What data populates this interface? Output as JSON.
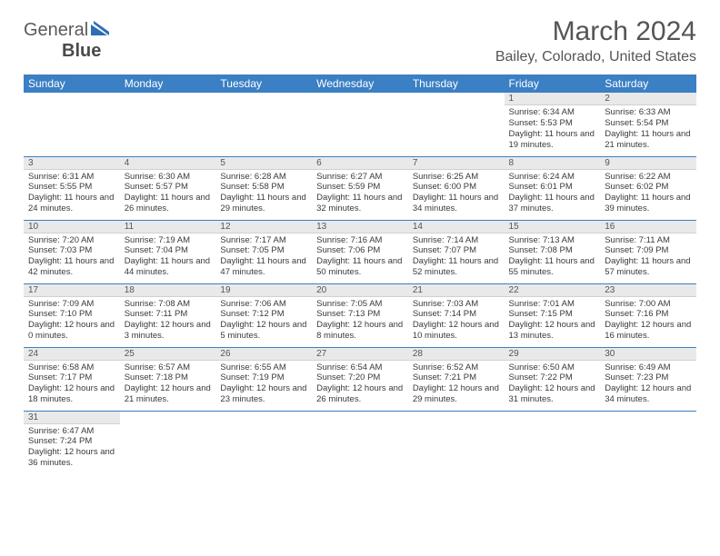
{
  "logo": {
    "text1": "General",
    "text2": "Blue"
  },
  "title": "March 2024",
  "location": "Bailey, Colorado, United States",
  "colors": {
    "header_bg": "#3b7fc4",
    "header_fg": "#ffffff",
    "daynum_bg": "#e9e9e9",
    "text": "#3a3a3a",
    "rule": "#3b7fc4"
  },
  "dayHeaders": [
    "Sunday",
    "Monday",
    "Tuesday",
    "Wednesday",
    "Thursday",
    "Friday",
    "Saturday"
  ],
  "weeks": [
    [
      null,
      null,
      null,
      null,
      null,
      {
        "n": "1",
        "sr": "6:34 AM",
        "ss": "5:53 PM",
        "dl": "11 hours and 19 minutes."
      },
      {
        "n": "2",
        "sr": "6:33 AM",
        "ss": "5:54 PM",
        "dl": "11 hours and 21 minutes."
      }
    ],
    [
      {
        "n": "3",
        "sr": "6:31 AM",
        "ss": "5:55 PM",
        "dl": "11 hours and 24 minutes."
      },
      {
        "n": "4",
        "sr": "6:30 AM",
        "ss": "5:57 PM",
        "dl": "11 hours and 26 minutes."
      },
      {
        "n": "5",
        "sr": "6:28 AM",
        "ss": "5:58 PM",
        "dl": "11 hours and 29 minutes."
      },
      {
        "n": "6",
        "sr": "6:27 AM",
        "ss": "5:59 PM",
        "dl": "11 hours and 32 minutes."
      },
      {
        "n": "7",
        "sr": "6:25 AM",
        "ss": "6:00 PM",
        "dl": "11 hours and 34 minutes."
      },
      {
        "n": "8",
        "sr": "6:24 AM",
        "ss": "6:01 PM",
        "dl": "11 hours and 37 minutes."
      },
      {
        "n": "9",
        "sr": "6:22 AM",
        "ss": "6:02 PM",
        "dl": "11 hours and 39 minutes."
      }
    ],
    [
      {
        "n": "10",
        "sr": "7:20 AM",
        "ss": "7:03 PM",
        "dl": "11 hours and 42 minutes."
      },
      {
        "n": "11",
        "sr": "7:19 AM",
        "ss": "7:04 PM",
        "dl": "11 hours and 44 minutes."
      },
      {
        "n": "12",
        "sr": "7:17 AM",
        "ss": "7:05 PM",
        "dl": "11 hours and 47 minutes."
      },
      {
        "n": "13",
        "sr": "7:16 AM",
        "ss": "7:06 PM",
        "dl": "11 hours and 50 minutes."
      },
      {
        "n": "14",
        "sr": "7:14 AM",
        "ss": "7:07 PM",
        "dl": "11 hours and 52 minutes."
      },
      {
        "n": "15",
        "sr": "7:13 AM",
        "ss": "7:08 PM",
        "dl": "11 hours and 55 minutes."
      },
      {
        "n": "16",
        "sr": "7:11 AM",
        "ss": "7:09 PM",
        "dl": "11 hours and 57 minutes."
      }
    ],
    [
      {
        "n": "17",
        "sr": "7:09 AM",
        "ss": "7:10 PM",
        "dl": "12 hours and 0 minutes."
      },
      {
        "n": "18",
        "sr": "7:08 AM",
        "ss": "7:11 PM",
        "dl": "12 hours and 3 minutes."
      },
      {
        "n": "19",
        "sr": "7:06 AM",
        "ss": "7:12 PM",
        "dl": "12 hours and 5 minutes."
      },
      {
        "n": "20",
        "sr": "7:05 AM",
        "ss": "7:13 PM",
        "dl": "12 hours and 8 minutes."
      },
      {
        "n": "21",
        "sr": "7:03 AM",
        "ss": "7:14 PM",
        "dl": "12 hours and 10 minutes."
      },
      {
        "n": "22",
        "sr": "7:01 AM",
        "ss": "7:15 PM",
        "dl": "12 hours and 13 minutes."
      },
      {
        "n": "23",
        "sr": "7:00 AM",
        "ss": "7:16 PM",
        "dl": "12 hours and 16 minutes."
      }
    ],
    [
      {
        "n": "24",
        "sr": "6:58 AM",
        "ss": "7:17 PM",
        "dl": "12 hours and 18 minutes."
      },
      {
        "n": "25",
        "sr": "6:57 AM",
        "ss": "7:18 PM",
        "dl": "12 hours and 21 minutes."
      },
      {
        "n": "26",
        "sr": "6:55 AM",
        "ss": "7:19 PM",
        "dl": "12 hours and 23 minutes."
      },
      {
        "n": "27",
        "sr": "6:54 AM",
        "ss": "7:20 PM",
        "dl": "12 hours and 26 minutes."
      },
      {
        "n": "28",
        "sr": "6:52 AM",
        "ss": "7:21 PM",
        "dl": "12 hours and 29 minutes."
      },
      {
        "n": "29",
        "sr": "6:50 AM",
        "ss": "7:22 PM",
        "dl": "12 hours and 31 minutes."
      },
      {
        "n": "30",
        "sr": "6:49 AM",
        "ss": "7:23 PM",
        "dl": "12 hours and 34 minutes."
      }
    ],
    [
      {
        "n": "31",
        "sr": "6:47 AM",
        "ss": "7:24 PM",
        "dl": "12 hours and 36 minutes."
      },
      null,
      null,
      null,
      null,
      null,
      null
    ]
  ],
  "labels": {
    "sunrise": "Sunrise: ",
    "sunset": "Sunset: ",
    "daylight": "Daylight: "
  }
}
